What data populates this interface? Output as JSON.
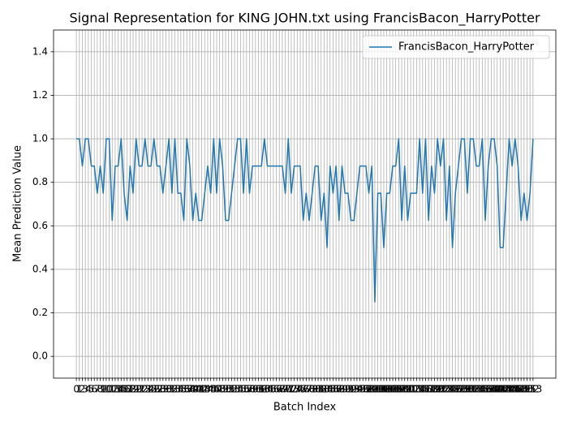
{
  "chart_data": {
    "type": "line",
    "title": "Signal Representation for KING JOHN.txt using FrancisBacon_HarryPotter",
    "xlabel": "Batch Index",
    "ylabel": "Mean Prediction Value",
    "x": [
      0,
      1,
      2,
      3,
      4,
      5,
      6,
      7,
      8,
      9,
      10,
      11,
      12,
      13,
      14,
      15,
      16,
      17,
      18,
      19,
      20,
      21,
      22,
      23,
      24,
      25,
      26,
      27,
      28,
      29,
      30,
      31,
      32,
      33,
      34,
      35,
      36,
      37,
      38,
      39,
      40,
      41,
      42,
      43,
      44,
      45,
      46,
      47,
      48,
      49,
      50,
      51,
      52,
      53,
      54,
      55,
      56,
      57,
      58,
      59,
      60,
      61,
      62,
      63,
      64,
      65,
      66,
      67,
      68,
      69,
      70,
      71,
      72,
      73,
      74,
      75,
      76,
      77,
      78,
      79,
      80,
      81,
      82,
      83,
      84,
      85,
      86,
      87,
      88,
      89,
      90,
      91,
      92,
      93,
      94,
      95,
      96,
      97,
      98,
      99,
      100,
      101,
      102,
      103,
      104,
      105,
      106,
      107,
      108,
      109,
      110,
      111,
      112,
      113,
      114,
      115,
      116,
      117,
      118,
      119,
      120,
      121,
      122,
      123,
      124,
      125,
      126,
      127,
      128,
      129,
      130,
      131,
      132,
      133,
      134,
      135,
      136,
      137,
      138,
      139,
      140,
      141,
      142,
      143,
      144,
      145,
      146,
      147,
      148,
      149,
      150,
      151,
      152,
      153
    ],
    "series": [
      {
        "name": "FrancisBacon_HarryPotter",
        "color": "#1f77b4",
        "values": [
          1,
          1,
          0.875,
          1,
          1,
          0.875,
          0.875,
          0.75,
          0.875,
          0.75,
          1,
          1,
          0.625,
          0.875,
          0.875,
          1,
          0.75,
          0.625,
          0.875,
          0.75,
          1,
          0.875,
          0.875,
          1,
          0.875,
          0.875,
          1,
          0.875,
          0.875,
          0.75,
          0.875,
          1,
          0.75,
          1,
          0.75,
          0.75,
          0.625,
          1,
          0.875,
          0.625,
          0.75,
          0.625,
          0.625,
          0.75,
          0.875,
          0.75,
          1,
          0.75,
          1,
          0.875,
          0.625,
          0.625,
          0.75,
          0.875,
          1,
          1,
          0.75,
          1,
          0.75,
          0.875,
          0.875,
          0.875,
          0.875,
          1,
          0.875,
          0.875,
          0.875,
          0.875,
          0.875,
          0.875,
          0.75,
          1,
          0.75,
          0.875,
          0.875,
          0.875,
          0.625,
          0.75,
          0.625,
          0.75,
          0.875,
          0.875,
          0.625,
          0.75,
          0.5,
          0.875,
          0.75,
          0.875,
          0.625,
          0.875,
          0.75,
          0.75,
          0.625,
          0.625,
          0.75,
          0.875,
          0.875,
          0.875,
          0.75,
          0.875,
          0.25,
          0.75,
          0.75,
          0.5,
          0.75,
          0.75,
          0.875,
          0.875,
          1,
          0.625,
          0.875,
          0.625,
          0.75,
          0.75,
          0.75,
          1,
          0.75,
          1,
          0.625,
          0.875,
          0.75,
          1,
          0.875,
          1,
          0.625,
          0.875,
          0.5,
          0.75,
          0.875,
          1,
          1,
          0.75,
          1,
          1,
          0.875,
          0.875,
          1,
          0.625,
          0.875,
          1,
          1,
          0.875,
          0.5,
          0.5,
          0.75,
          1,
          0.875,
          1,
          0.875,
          0.625,
          0.75,
          0.625,
          0.75,
          1
        ]
      }
    ],
    "xlim": [
      -7.65,
      160.65
    ],
    "xticks": [
      0,
      1,
      2,
      3,
      4,
      5,
      6,
      7,
      8,
      9,
      10,
      11,
      12,
      13,
      14,
      15,
      16,
      17,
      18,
      19,
      20,
      21,
      22,
      23,
      24,
      25,
      26,
      27,
      28,
      29,
      30,
      31,
      32,
      33,
      34,
      35,
      36,
      37,
      38,
      39,
      40,
      41,
      42,
      43,
      44,
      45,
      46,
      47,
      48,
      49,
      50,
      51,
      52,
      53,
      54,
      55,
      56,
      57,
      58,
      59,
      60,
      61,
      62,
      63,
      64,
      65,
      66,
      67,
      68,
      69,
      70,
      71,
      72,
      73,
      74,
      75,
      76,
      77,
      78,
      79,
      80,
      81,
      82,
      83,
      84,
      85,
      86,
      87,
      88,
      89,
      90,
      91,
      92,
      93,
      94,
      95,
      96,
      97,
      98,
      99,
      100,
      101,
      102,
      103,
      104,
      105,
      106,
      107,
      108,
      109,
      110,
      111,
      112,
      113,
      114,
      115,
      116,
      117,
      118,
      119,
      120,
      121,
      122,
      123,
      124,
      125,
      126,
      127,
      128,
      129,
      130,
      131,
      132,
      133,
      134,
      135,
      136,
      137,
      138,
      139,
      140,
      141,
      142,
      143,
      144,
      145,
      146,
      147,
      148,
      149,
      150,
      151,
      152,
      153
    ],
    "ylim": [
      -0.1,
      1.5
    ],
    "yticks": [
      {
        "value": 0,
        "label": "0.0"
      },
      {
        "value": 0.2,
        "label": "0.2"
      },
      {
        "value": 0.4,
        "label": "0.4"
      },
      {
        "value": 0.6,
        "label": "0.6"
      },
      {
        "value": 0.8,
        "label": "0.8"
      },
      {
        "value": 1,
        "label": "1.0"
      },
      {
        "value": 1.2,
        "label": "1.2"
      },
      {
        "value": 1.4,
        "label": "1.4"
      }
    ],
    "grid": true,
    "legend": "upper right"
  }
}
